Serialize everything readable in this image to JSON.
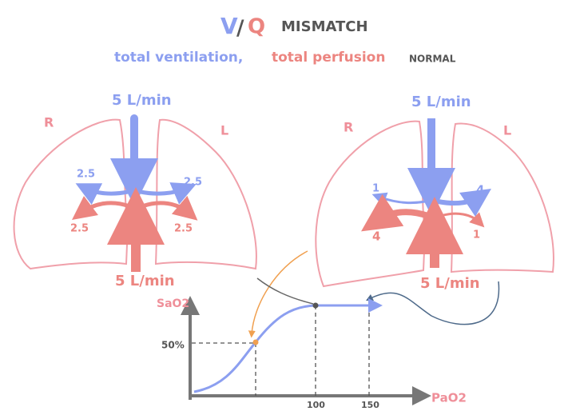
{
  "title": {
    "v": "V",
    "slash": "/",
    "q": "Q",
    "rest": "MISMATCH"
  },
  "subtitle": {
    "ventilation": "total ventilation,",
    "perfusion": "total perfusion",
    "status": "NORMAL"
  },
  "diagrams": [
    {
      "right_label": "R",
      "left_label": "L",
      "ventilation": "5 L/min",
      "perfusion": "5 L/min",
      "vent_right": "2.5",
      "vent_left": "2.5",
      "perf_right": "2.5",
      "perf_left": "2.5"
    },
    {
      "right_label": "R",
      "left_label": "L",
      "ventilation": "5 L/min",
      "perfusion": "5 L/min",
      "vent_right": "1",
      "vent_left": "4",
      "perf_right": "4",
      "perf_left": "1"
    }
  ],
  "curve": {
    "y_label": "SaO2",
    "x_label": "PaO2",
    "y_tick": "50%",
    "x_ticks": [
      "100",
      "150"
    ]
  }
}
